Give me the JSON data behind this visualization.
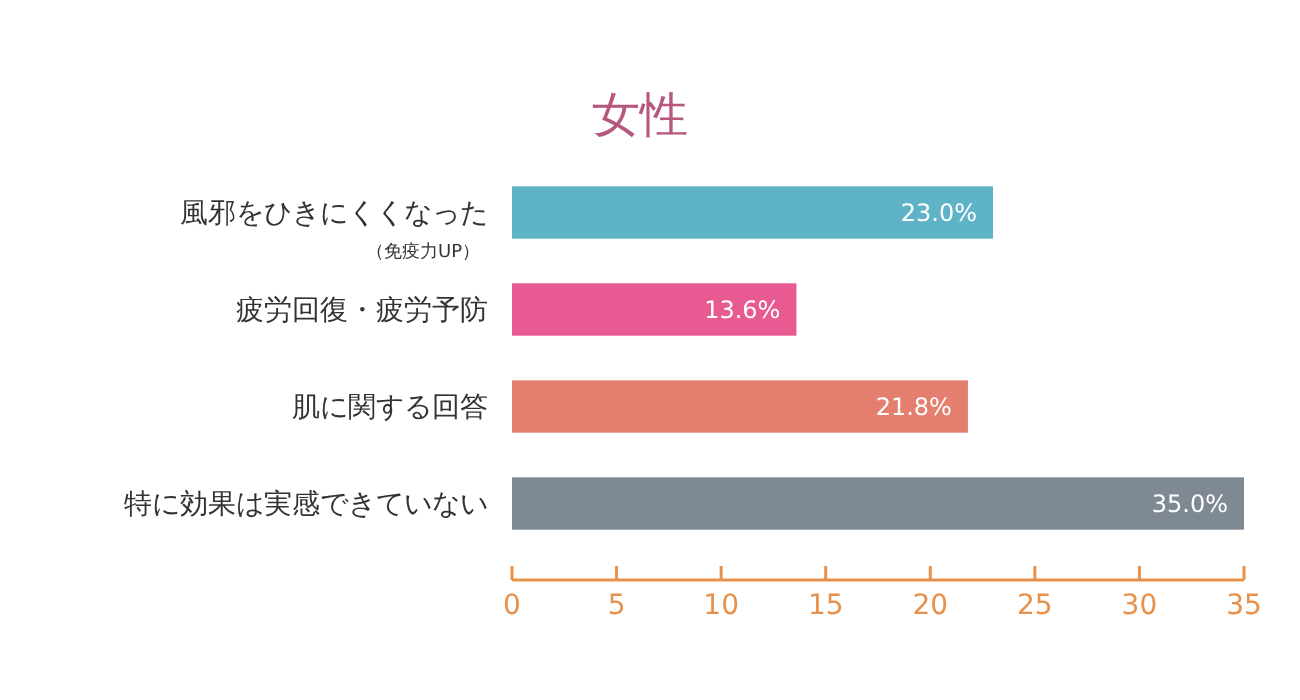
{
  "chart_data": {
    "type": "bar",
    "orientation": "horizontal",
    "title": "女性",
    "categories": [
      "風邪をひきにくくなった",
      "疲労回復・疲労予防",
      "肌に関する回答",
      "特に効果は実感できていない"
    ],
    "values": [
      23.0,
      13.6,
      21.8,
      35.0
    ],
    "colors": [
      "#5fb3c6",
      "#e75a92",
      "#e47f6f",
      "#7f8993"
    ],
    "value_labels": [
      "23.0%",
      "13.6%",
      "21.8%",
      "35.0%"
    ],
    "annotations": [
      "（免疫力UP）"
    ],
    "xlim": [
      0,
      35
    ],
    "xticks": [
      0,
      5,
      10,
      15,
      20,
      25,
      30,
      35
    ],
    "grid": false
  }
}
